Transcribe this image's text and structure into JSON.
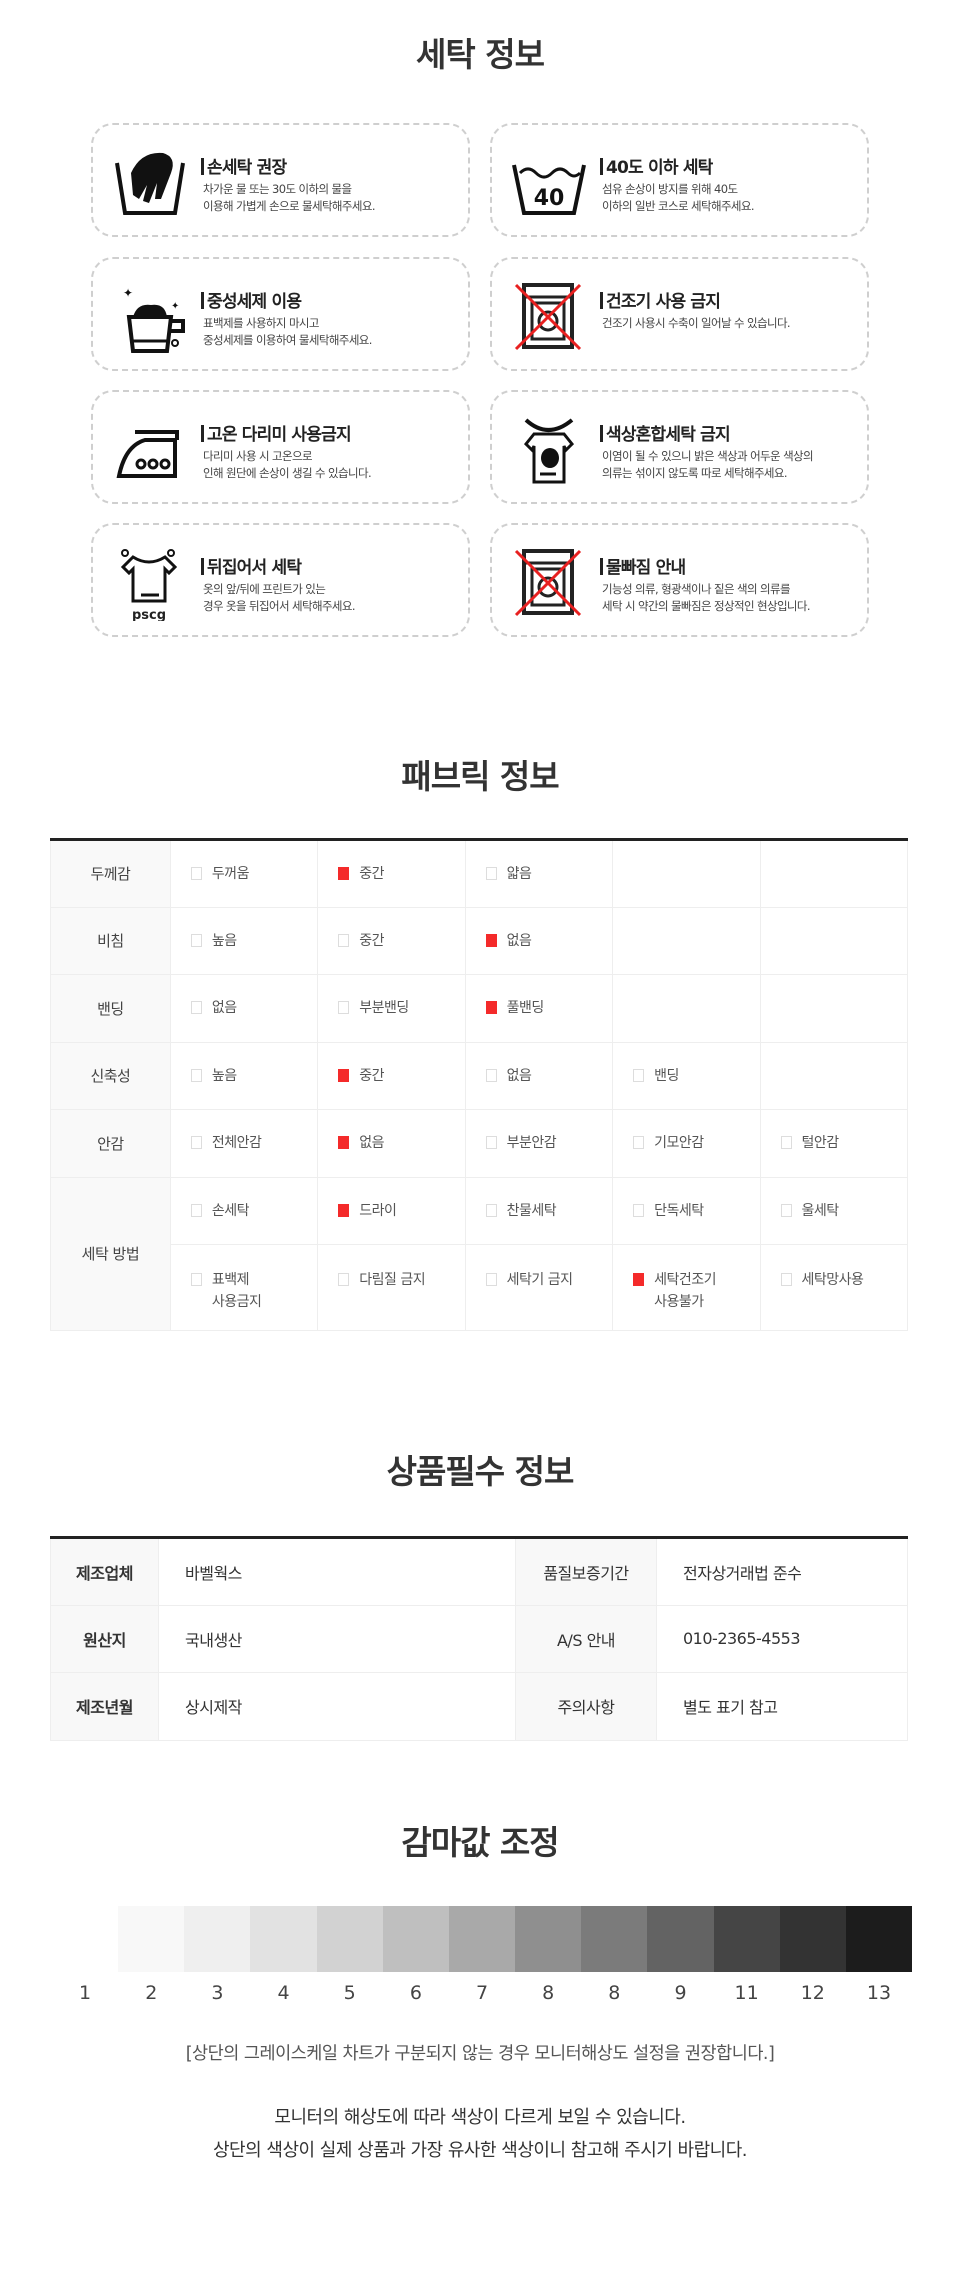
{
  "laundry": {
    "title": "세탁 정보",
    "cards": [
      {
        "icon": "hand-wash-icon",
        "title": "손세탁 권장",
        "desc": "차가운 물 또는 30도 이하의 물을\n이용해 가볍게 손으로 물세탁해주세요."
      },
      {
        "icon": "wash-40-icon",
        "icon_text": "40",
        "title": "40도 이하 세탁",
        "desc": "섬유 손상이 방지를 위해 40도\n이하의 일반 코스로 세탁해주세요."
      },
      {
        "icon": "neutral-detergent-icon",
        "title": "중성세제 이용",
        "desc": "표백제를 사용하지 마시고\n중성세제를 이용하여 물세탁해주세요."
      },
      {
        "icon": "no-dryer-icon",
        "title": "건조기 사용 금지",
        "desc": "건조기 사용시 수축이 일어날 수 있습니다."
      },
      {
        "icon": "no-iron-icon",
        "title": "고온 다리미 사용금지",
        "desc": "다리미 사용 시 고온으로\n인해 원단에 손상이 생길 수 있습니다."
      },
      {
        "icon": "separate-colors-icon",
        "title": "색상혼합세탁 금지",
        "desc": "이염이 될 수 있으니 밝은 색상과 어두운 색상의\n의류는 섞이지 않도록 따로 세탁해주세요."
      },
      {
        "icon": "inside-out-icon",
        "icon_text": "pscg",
        "title": "뒤집어서 세탁",
        "desc": "옷의 앞/뒤에 프린트가 있는\n경우 옷을 뒤집어서 세탁해주세요."
      },
      {
        "icon": "color-bleed-icon",
        "title": "물빠짐 안내",
        "desc": "기능성 의류, 형광색이나 짙은 색의 의류를\n세탁 시 약간의 물빠짐은 정상적인 현상입니다."
      }
    ]
  },
  "fabric": {
    "title": "패브릭 정보",
    "rows": [
      {
        "label": "두께감",
        "options": [
          {
            "text": "두꺼움",
            "checked": false
          },
          {
            "text": "중간",
            "checked": true
          },
          {
            "text": "얇음",
            "checked": false
          }
        ]
      },
      {
        "label": "비침",
        "options": [
          {
            "text": "높음",
            "checked": false
          },
          {
            "text": "중간",
            "checked": false
          },
          {
            "text": "없음",
            "checked": true
          }
        ]
      },
      {
        "label": "밴딩",
        "options": [
          {
            "text": "없음",
            "checked": false
          },
          {
            "text": "부분밴딩",
            "checked": false
          },
          {
            "text": "풀밴딩",
            "checked": true
          }
        ]
      },
      {
        "label": "신축성",
        "options": [
          {
            "text": "높음",
            "checked": false
          },
          {
            "text": "중간",
            "checked": true
          },
          {
            "text": "없음",
            "checked": false
          },
          {
            "text": "밴딩",
            "checked": false
          }
        ]
      },
      {
        "label": "안감",
        "options": [
          {
            "text": "전체안감",
            "checked": false
          },
          {
            "text": "없음",
            "checked": true
          },
          {
            "text": "부분안감",
            "checked": false
          },
          {
            "text": "기모안감",
            "checked": false
          },
          {
            "text": "털안감",
            "checked": false
          }
        ]
      },
      {
        "label": "세탁 방법",
        "options": [
          {
            "text": "손세탁",
            "checked": false
          },
          {
            "text": "드라이",
            "checked": true
          },
          {
            "text": "찬물세탁",
            "checked": false
          },
          {
            "text": "단독세탁",
            "checked": false
          },
          {
            "text": "울세탁",
            "checked": false
          }
        ]
      },
      {
        "label": "",
        "options": [
          {
            "text": "표백제\n사용금지",
            "checked": false
          },
          {
            "text": "다림질 금지",
            "checked": false
          },
          {
            "text": "세탁기 금지",
            "checked": false
          },
          {
            "text": "세탁건조기\n사용불가",
            "checked": true
          },
          {
            "text": "세탁망사용",
            "checked": false
          }
        ]
      }
    ],
    "check_color": "#f42a2a"
  },
  "product": {
    "title": "상품필수  정보",
    "rows": [
      {
        "k1": "제조업체",
        "v1": "바벨웍스",
        "k2": "품질보증기간",
        "v2": "전자상거래법  준수"
      },
      {
        "k1": "원산지",
        "v1": "국내생산",
        "k2": "A/S  안내",
        "v2": "010-2365-4553"
      },
      {
        "k1": "제조년월",
        "v1": "상시제작",
        "k2": "주의사항",
        "v2": "별도  표기  참고"
      }
    ]
  },
  "gamma": {
    "title": "감마값 조정",
    "swatches": [
      "#ffffff",
      "#f8f8f8",
      "#efefef",
      "#e2e2e2",
      "#d2d2d2",
      "#bfbfbf",
      "#a9a9a9",
      "#8f8f8f",
      "#7b7b7b",
      "#636363",
      "#454545",
      "#333333",
      "#1c1c1c"
    ],
    "labels": [
      "1",
      "2",
      "3",
      "4",
      "5",
      "6",
      "7",
      "8",
      "8",
      "9",
      "11",
      "12",
      "13"
    ],
    "notice": "[상단의 그레이스케일 차트가 구분되지 않는 경우 모니터해상도 설정을 권장합니다.]",
    "line1": "모니터의 해상도에 따라 색상이 다르게 보일 수 있습니다.",
    "line2": "상단의 색상이 실제 상품과 가장 유사한 색상이니 참고해 주시기 바랍니다."
  }
}
